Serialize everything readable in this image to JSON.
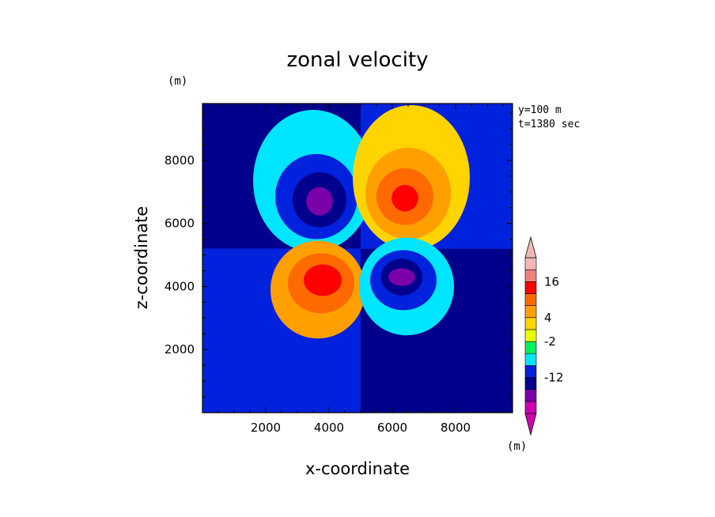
{
  "chart_data": {
    "type": "heatmap",
    "title": "zonal velocity",
    "xlabel": "x-coordinate",
    "ylabel": "z-coordinate",
    "x_unit": "(m)",
    "y_unit": "(m)",
    "info": [
      "y=100 m",
      "t=1380 sec"
    ],
    "xlim": [
      0,
      9800
    ],
    "ylim": [
      0,
      9800
    ],
    "xticks": [
      2000,
      4000,
      6000,
      8000
    ],
    "yticks": [
      2000,
      4000,
      6000,
      8000
    ],
    "levels": [
      -24,
      -20,
      -16,
      -12,
      -8,
      -4,
      -2,
      2,
      4,
      8,
      12,
      16,
      20,
      24
    ],
    "colorbar_labels": [
      16,
      4,
      -2,
      -12
    ],
    "band_colors": [
      "#cc00b0",
      "#7a00aa",
      "#00008c",
      "#0022dd",
      "#00e5ff",
      "#00f060",
      "#e8ff00",
      "#ffd400",
      "#ffa000",
      "#ff6a00",
      "#ff0000",
      "#f08080",
      "#f2b8b8"
    ],
    "extremes": [
      {
        "x": 3700,
        "z": 6700,
        "value": -20
      },
      {
        "x": 6400,
        "z": 6800,
        "value": 18
      },
      {
        "x": 3800,
        "z": 4200,
        "value": 18
      },
      {
        "x": 6300,
        "z": 4300,
        "value": -20
      }
    ],
    "background_upper_left": 2,
    "background_upper_right": 3,
    "background_lower_left": 3,
    "background_lower_right": 2
  }
}
